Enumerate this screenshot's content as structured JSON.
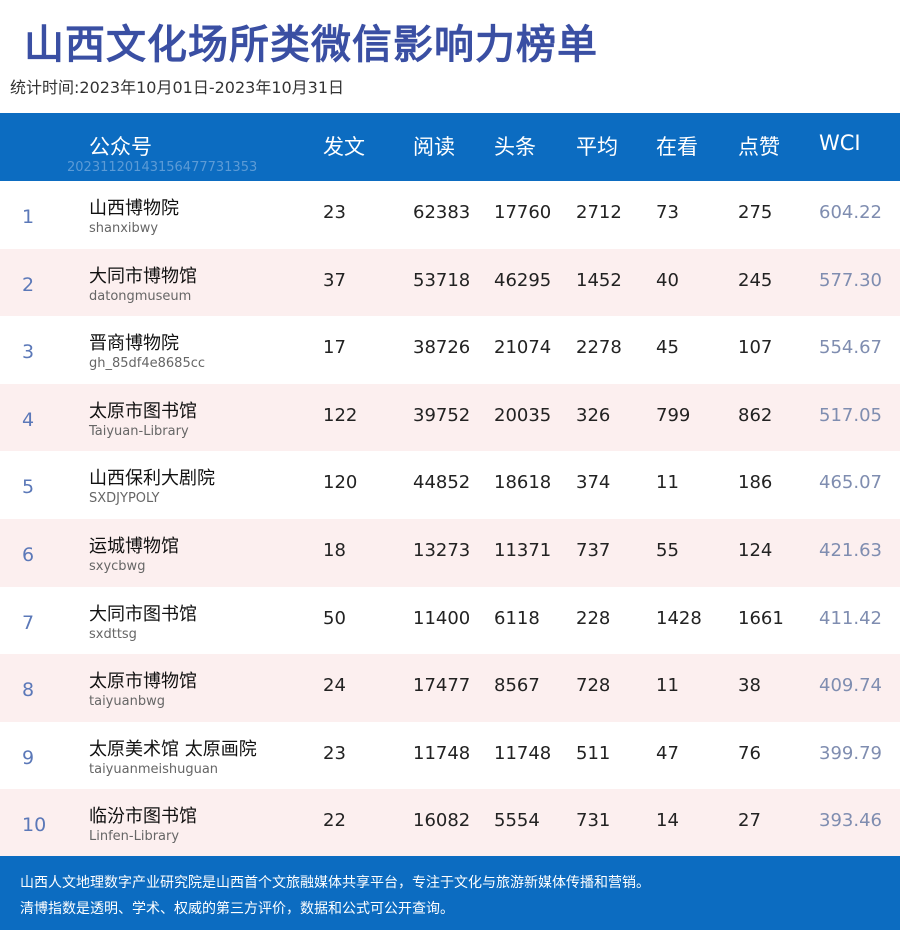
{
  "title": "山西文化场所类微信影响力榜单",
  "subtitle": "统计时间:2023年10月01日-2023年10月31日",
  "header": {
    "account": "公众号",
    "posts": "发文",
    "reads": "阅读",
    "headline": "头条",
    "average": "平均",
    "watching": "在看",
    "likes": "点赞",
    "wci": "WCI",
    "id_watermark": "20231120143156477731353"
  },
  "rows": [
    {
      "rank": "1",
      "name": "山西博物院",
      "account_id": "shanxibwy",
      "posts": "23",
      "reads": "62383",
      "headline": "17760",
      "average": "2712",
      "watching": "73",
      "likes": "275",
      "wci": "604.22"
    },
    {
      "rank": "2",
      "name": "大同市博物馆",
      "account_id": "datongmuseum",
      "posts": "37",
      "reads": "53718",
      "headline": "46295",
      "average": "1452",
      "watching": "40",
      "likes": "245",
      "wci": "577.30"
    },
    {
      "rank": "3",
      "name": "晋商博物院",
      "account_id": "gh_85df4e8685cc",
      "posts": "17",
      "reads": "38726",
      "headline": "21074",
      "average": "2278",
      "watching": "45",
      "likes": "107",
      "wci": "554.67"
    },
    {
      "rank": "4",
      "name": "太原市图书馆",
      "account_id": "Taiyuan-Library",
      "posts": "122",
      "reads": "39752",
      "headline": "20035",
      "average": "326",
      "watching": "799",
      "likes": "862",
      "wci": "517.05"
    },
    {
      "rank": "5",
      "name": "山西保利大剧院",
      "account_id": "SXDJYPOLY",
      "posts": "120",
      "reads": "44852",
      "headline": "18618",
      "average": "374",
      "watching": "11",
      "likes": "186",
      "wci": "465.07"
    },
    {
      "rank": "6",
      "name": "运城博物馆",
      "account_id": "sxycbwg",
      "posts": "18",
      "reads": "13273",
      "headline": "11371",
      "average": "737",
      "watching": "55",
      "likes": "124",
      "wci": "421.63"
    },
    {
      "rank": "7",
      "name": "大同市图书馆",
      "account_id": "sxdttsg",
      "posts": "50",
      "reads": "11400",
      "headline": "6118",
      "average": "228",
      "watching": "1428",
      "likes": "1661",
      "wci": "411.42"
    },
    {
      "rank": "8",
      "name": "太原市博物馆",
      "account_id": "taiyuanbwg",
      "posts": "24",
      "reads": "17477",
      "headline": "8567",
      "average": "728",
      "watching": "11",
      "likes": "38",
      "wci": "409.74"
    },
    {
      "rank": "9",
      "name": "太原美术馆 太原画院",
      "account_id": "taiyuanmeishuguan",
      "posts": "23",
      "reads": "11748",
      "headline": "11748",
      "average": "511",
      "watching": "47",
      "likes": "76",
      "wci": "399.79"
    },
    {
      "rank": "10",
      "name": "临汾市图书馆",
      "account_id": "Linfen-Library",
      "posts": "22",
      "reads": "16082",
      "headline": "5554",
      "average": "731",
      "watching": "14",
      "likes": "27",
      "wci": "393.46"
    }
  ],
  "footer": {
    "line1": "山西人文地理数字产业研究院是山西首个文旅融媒体共享平台，专注于文化与旅游新媒体传播和营销。",
    "line2": "清博指数是透明、学术、权威的第三方评价，数据和公式可公开查询。"
  },
  "colors": {
    "title": "#3a4fa3",
    "header_bg": "#0c6cc1",
    "row_alt_bg": "#fcefef",
    "rank": "#5b78b8",
    "wci": "#7f8db0"
  }
}
